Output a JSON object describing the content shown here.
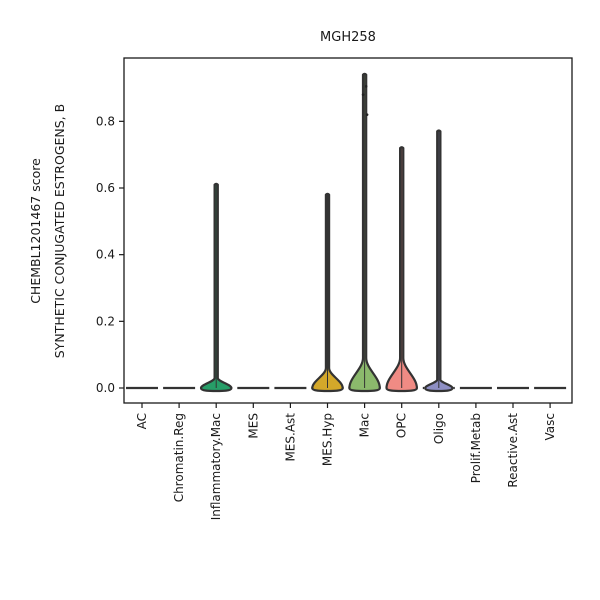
{
  "chart_data": {
    "type": "violin",
    "title": "MGH258",
    "ylabel_lines": [
      "CHEMBL1201467 score",
      "SYNTHETIC CONJUGATED ESTROGENS, B"
    ],
    "xlabel": "",
    "ylim": [
      -0.045,
      0.99
    ],
    "yticks": [
      0.0,
      0.2,
      0.4,
      0.6,
      0.8
    ],
    "ytick_labels": [
      "0.0",
      "0.2",
      "0.4",
      "0.6",
      "0.8"
    ],
    "categories": [
      "AC",
      "Chromatin.Reg",
      "Inflammatory.Mac",
      "MES",
      "MES.Ast",
      "MES.Hyp",
      "Mac",
      "OPC",
      "Oligo",
      "Prolif.Metab",
      "Reactive.Ast",
      "Vasc"
    ],
    "colors": [
      "#1f77b4",
      "#ff7f0e",
      "#279e68",
      "#d62728",
      "#aa40fc",
      "#d4a82a",
      "#8bb96c",
      "#f08b84",
      "#8e8fc4",
      "#17becf",
      "#aec7e8",
      "#ffbb78"
    ],
    "violins": [
      {
        "category": "AC",
        "max": 0.0,
        "bulk_height": 0.0,
        "bulk_width": 0.0,
        "outliers": []
      },
      {
        "category": "Chromatin.Reg",
        "max": 0.0,
        "bulk_height": 0.0,
        "bulk_width": 0.0,
        "outliers": []
      },
      {
        "category": "Inflammatory.Mac",
        "max": 0.61,
        "bulk_height": 0.03,
        "bulk_width": 0.95,
        "outliers": []
      },
      {
        "category": "MES",
        "max": 0.0,
        "bulk_height": 0.0,
        "bulk_width": 0.0,
        "outliers": []
      },
      {
        "category": "MES.Ast",
        "max": 0.0,
        "bulk_height": 0.0,
        "bulk_width": 0.0,
        "outliers": []
      },
      {
        "category": "MES.Hyp",
        "max": 0.58,
        "bulk_height": 0.06,
        "bulk_width": 0.95,
        "outliers": []
      },
      {
        "category": "Mac",
        "max": 0.94,
        "bulk_height": 0.09,
        "bulk_width": 0.95,
        "outliers": [
          0.88,
          0.905,
          0.82
        ]
      },
      {
        "category": "OPC",
        "max": 0.72,
        "bulk_height": 0.09,
        "bulk_width": 0.95,
        "outliers": []
      },
      {
        "category": "Oligo",
        "max": 0.77,
        "bulk_height": 0.025,
        "bulk_width": 0.85,
        "outliers": []
      },
      {
        "category": "Prolif.Metab",
        "max": 0.0,
        "bulk_height": 0.0,
        "bulk_width": 0.0,
        "outliers": []
      },
      {
        "category": "Reactive.Ast",
        "max": 0.0,
        "bulk_height": 0.0,
        "bulk_width": 0.0,
        "outliers": []
      },
      {
        "category": "Vasc",
        "max": 0.0,
        "bulk_height": 0.0,
        "bulk_width": 0.0,
        "outliers": []
      }
    ],
    "grid": false,
    "legend": "none"
  }
}
